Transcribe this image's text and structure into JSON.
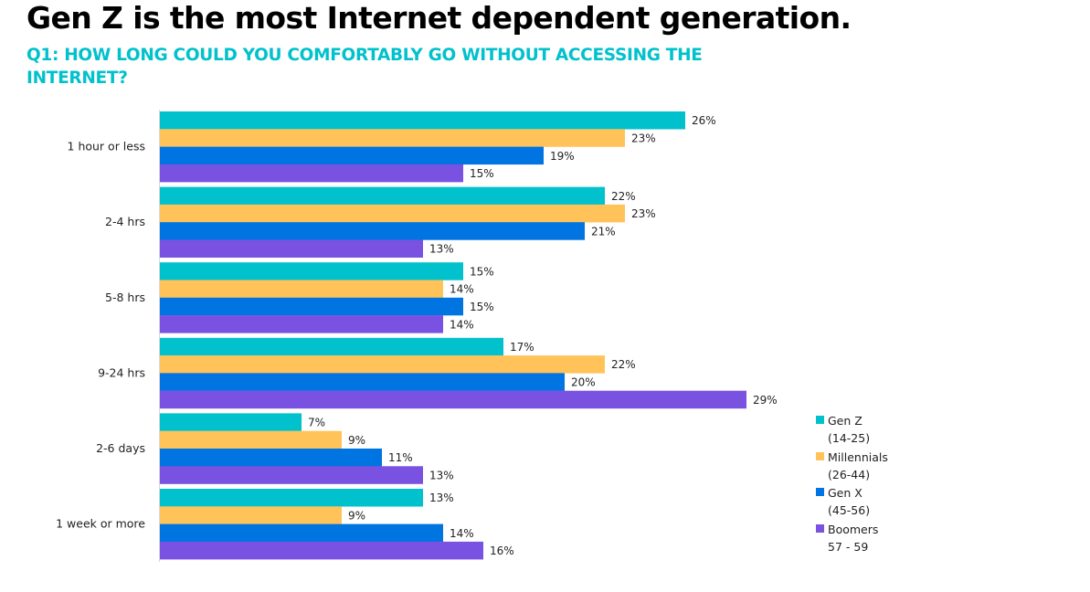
{
  "header": {
    "title": "Gen Z is the most Internet dependent generation.",
    "subtitle": "Q1: HOW LONG COULD YOU COMFORTABLY GO WITHOUT ACCESSING THE INTERNET?"
  },
  "chart_data": {
    "type": "bar",
    "orientation": "horizontal",
    "title": "Gen Z is the most Internet dependent generation.",
    "subtitle": "Q1: HOW LONG COULD YOU COMFORTABLY GO WITHOUT ACCESSING THE INTERNET?",
    "xlabel": "",
    "ylabel": "",
    "xlim": [
      0,
      30
    ],
    "grid": false,
    "legend_position": "bottom-right",
    "value_suffix": "%",
    "categories": [
      "1 hour or less",
      "2-4 hrs",
      "5-8 hrs",
      "9-24 hrs",
      "2-6 days",
      "1 week or more"
    ],
    "series": [
      {
        "name": "Gen Z",
        "sublabel": "(14-25)",
        "color": "#00c1cc",
        "values": [
          26,
          22,
          15,
          17,
          7,
          13
        ]
      },
      {
        "name": "Millennials",
        "sublabel": "(26-44)",
        "color": "#ffc35a",
        "values": [
          23,
          23,
          14,
          22,
          9,
          9
        ]
      },
      {
        "name": "Gen X",
        "sublabel": "(45-56)",
        "color": "#0074e0",
        "values": [
          19,
          21,
          15,
          20,
          11,
          14
        ]
      },
      {
        "name": "Boomers",
        "sublabel": "57 - 59",
        "color": "#7952e2",
        "values": [
          15,
          13,
          14,
          29,
          13,
          16
        ]
      }
    ]
  }
}
